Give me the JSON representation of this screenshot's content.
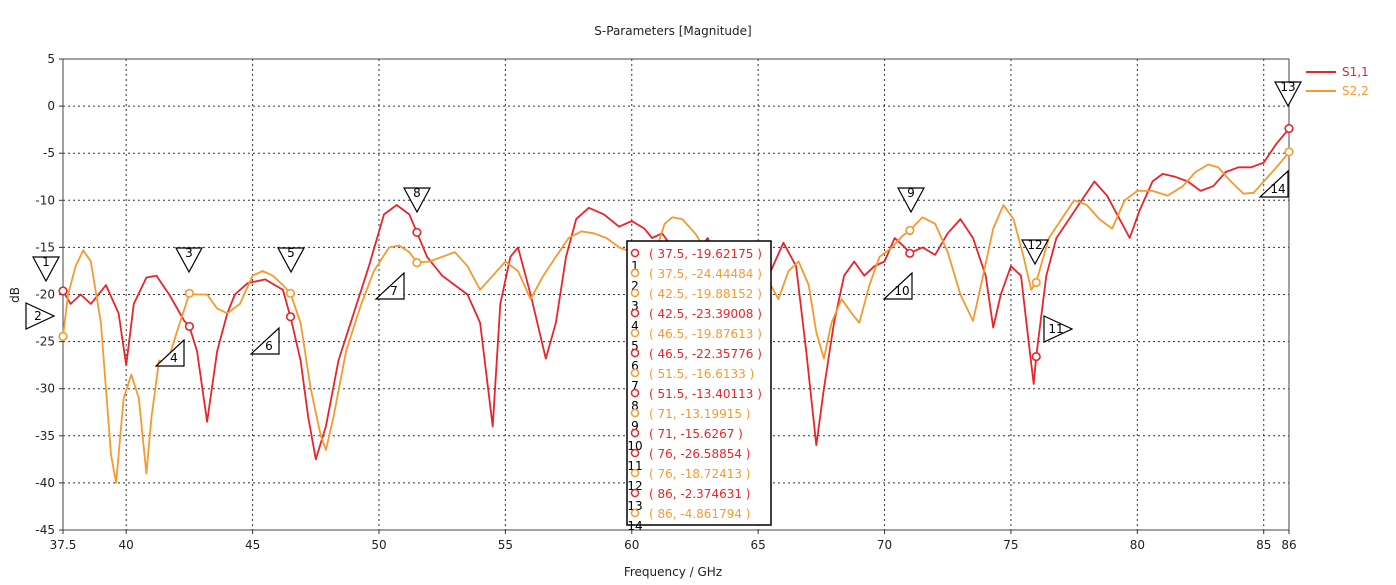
{
  "chart_data": {
    "type": "line",
    "title": "S-Parameters [Magnitude]",
    "xlabel": "Frequency / GHz",
    "ylabel": "dB",
    "xlim": [
      37.5,
      86
    ],
    "ylim": [
      -45,
      5
    ],
    "x_ticks": [
      37.5,
      40,
      45,
      50,
      55,
      60,
      65,
      70,
      75,
      80,
      85,
      86
    ],
    "x_tick_labels": [
      "37.5",
      "40",
      "45",
      "50",
      "55",
      "60",
      "65",
      "70",
      "75",
      "80",
      "85",
      "86"
    ],
    "y_ticks": [
      5,
      0,
      -5,
      -10,
      -15,
      -20,
      -25,
      -30,
      -35,
      -40,
      -45
    ],
    "y_tick_labels": [
      "5",
      "0",
      "-5",
      "-10",
      "-15",
      "-20",
      "-25",
      "-30",
      "-35",
      "-40",
      "-45"
    ],
    "grid": true,
    "legend_position": "top-right",
    "series": [
      {
        "name": "S1,1",
        "color": "#e8252b",
        "points": [
          [
            37.5,
            -19.6
          ],
          [
            37.8,
            -21
          ],
          [
            38.2,
            -20
          ],
          [
            38.6,
            -21
          ],
          [
            39.2,
            -19
          ],
          [
            39.7,
            -22
          ],
          [
            40,
            -27.5
          ],
          [
            40.3,
            -21
          ],
          [
            40.8,
            -18.2
          ],
          [
            41.2,
            -18
          ],
          [
            41.7,
            -20
          ],
          [
            42.3,
            -22.8
          ],
          [
            42.5,
            -23.4
          ],
          [
            42.8,
            -26
          ],
          [
            43.2,
            -33.5
          ],
          [
            43.6,
            -26
          ],
          [
            44,
            -22
          ],
          [
            44.3,
            -20
          ],
          [
            44.8,
            -18.8
          ],
          [
            45.5,
            -18.4
          ],
          [
            46.2,
            -19.5
          ],
          [
            46.5,
            -22.4
          ],
          [
            46.9,
            -27
          ],
          [
            47.2,
            -33
          ],
          [
            47.5,
            -37.5
          ],
          [
            47.9,
            -34
          ],
          [
            48.4,
            -27
          ],
          [
            49,
            -22
          ],
          [
            49.6,
            -17
          ],
          [
            50.2,
            -11.5
          ],
          [
            50.7,
            -10.5
          ],
          [
            51.2,
            -11.5
          ],
          [
            51.5,
            -13.4
          ],
          [
            51.9,
            -16
          ],
          [
            52.5,
            -18
          ],
          [
            53,
            -19
          ],
          [
            53.5,
            -20
          ],
          [
            54,
            -23
          ],
          [
            54.5,
            -34
          ],
          [
            54.8,
            -21
          ],
          [
            55.2,
            -16
          ],
          [
            55.5,
            -15
          ],
          [
            56,
            -20
          ],
          [
            56.6,
            -26.8
          ],
          [
            57,
            -23
          ],
          [
            57.4,
            -16
          ],
          [
            57.8,
            -12
          ],
          [
            58.3,
            -10.8
          ],
          [
            58.9,
            -11.5
          ],
          [
            59.5,
            -12.8
          ],
          [
            60,
            -12.2
          ],
          [
            60.5,
            -13
          ],
          [
            60.8,
            -14
          ],
          [
            61.2,
            -13.5
          ],
          [
            61.6,
            -15
          ],
          [
            62,
            -17.5
          ],
          [
            62.6,
            -15.5
          ],
          [
            63,
            -14
          ],
          [
            63.5,
            -17
          ],
          [
            64,
            -18.2
          ],
          [
            64.5,
            -16.5
          ],
          [
            65,
            -15.5
          ],
          [
            65.5,
            -17.5
          ],
          [
            66,
            -14.5
          ],
          [
            66.5,
            -17
          ],
          [
            66.9,
            -26
          ],
          [
            67.3,
            -36
          ],
          [
            67.6,
            -30
          ],
          [
            68,
            -23
          ],
          [
            68.4,
            -18
          ],
          [
            68.8,
            -16.5
          ],
          [
            69.2,
            -18
          ],
          [
            69.6,
            -17
          ],
          [
            70,
            -16.5
          ],
          [
            70.4,
            -14
          ],
          [
            70.8,
            -15
          ],
          [
            71,
            -15.6
          ],
          [
            71.5,
            -15
          ],
          [
            72,
            -15.8
          ],
          [
            72.5,
            -13.5
          ],
          [
            73,
            -12
          ],
          [
            73.5,
            -14
          ],
          [
            74,
            -18
          ],
          [
            74.3,
            -23.5
          ],
          [
            74.6,
            -20
          ],
          [
            75,
            -17
          ],
          [
            75.4,
            -18
          ],
          [
            75.7,
            -25
          ],
          [
            75.9,
            -29.5
          ],
          [
            76,
            -26.6
          ],
          [
            76.4,
            -18
          ],
          [
            76.8,
            -14
          ],
          [
            77.3,
            -12
          ],
          [
            77.8,
            -10
          ],
          [
            78.3,
            -8
          ],
          [
            78.8,
            -9.5
          ],
          [
            79.3,
            -12
          ],
          [
            79.7,
            -14
          ],
          [
            80.1,
            -11
          ],
          [
            80.6,
            -8
          ],
          [
            81,
            -7.2
          ],
          [
            81.5,
            -7.5
          ],
          [
            82,
            -8
          ],
          [
            82.5,
            -9
          ],
          [
            83,
            -8.5
          ],
          [
            83.5,
            -7
          ],
          [
            84,
            -6.5
          ],
          [
            84.5,
            -6.5
          ],
          [
            85,
            -6
          ],
          [
            85.5,
            -4
          ],
          [
            86,
            -2.4
          ]
        ]
      },
      {
        "name": "S2,2",
        "color": "#f59a2e",
        "points": [
          [
            37.5,
            -24.4
          ],
          [
            37.7,
            -20
          ],
          [
            38,
            -17
          ],
          [
            38.3,
            -15.3
          ],
          [
            38.6,
            -16.5
          ],
          [
            39,
            -23
          ],
          [
            39.4,
            -37
          ],
          [
            39.6,
            -40
          ],
          [
            39.9,
            -31
          ],
          [
            40.2,
            -28.5
          ],
          [
            40.5,
            -31
          ],
          [
            40.8,
            -39
          ],
          [
            41,
            -33
          ],
          [
            41.3,
            -27
          ],
          [
            41.6,
            -27.5
          ],
          [
            42,
            -24
          ],
          [
            42.5,
            -19.9
          ],
          [
            42.8,
            -20
          ],
          [
            43.2,
            -20
          ],
          [
            43.6,
            -21.5
          ],
          [
            44,
            -22
          ],
          [
            44.5,
            -21
          ],
          [
            45,
            -18
          ],
          [
            45.4,
            -17.5
          ],
          [
            45.8,
            -18
          ],
          [
            46.2,
            -19
          ],
          [
            46.5,
            -19.9
          ],
          [
            46.9,
            -23
          ],
          [
            47.3,
            -30
          ],
          [
            47.7,
            -35
          ],
          [
            47.9,
            -36.5
          ],
          [
            48.2,
            -33
          ],
          [
            48.7,
            -26
          ],
          [
            49.3,
            -21
          ],
          [
            49.8,
            -17.5
          ],
          [
            50.4,
            -15
          ],
          [
            50.8,
            -14.8
          ],
          [
            51.2,
            -15.5
          ],
          [
            51.5,
            -16.6
          ],
          [
            52,
            -16.5
          ],
          [
            52.5,
            -16
          ],
          [
            53,
            -15.5
          ],
          [
            53.5,
            -17
          ],
          [
            54,
            -19.5
          ],
          [
            54.5,
            -18
          ],
          [
            55,
            -16.5
          ],
          [
            55.5,
            -17.5
          ],
          [
            56,
            -20.5
          ],
          [
            56.5,
            -18
          ],
          [
            57,
            -16
          ],
          [
            57.5,
            -14
          ],
          [
            58,
            -13.3
          ],
          [
            58.5,
            -13.5
          ],
          [
            59,
            -14
          ],
          [
            59.5,
            -15
          ],
          [
            60,
            -15.5
          ],
          [
            60.6,
            -16
          ],
          [
            61,
            -15
          ],
          [
            61.3,
            -12.5
          ],
          [
            61.6,
            -11.8
          ],
          [
            62,
            -12
          ],
          [
            62.5,
            -13.5
          ],
          [
            63,
            -15.5
          ],
          [
            63.5,
            -16.5
          ],
          [
            64,
            -17
          ],
          [
            64.5,
            -15.5
          ],
          [
            65,
            -16
          ],
          [
            65.5,
            -19
          ],
          [
            65.8,
            -20.5
          ],
          [
            66.2,
            -17.5
          ],
          [
            66.6,
            -16.5
          ],
          [
            67,
            -19
          ],
          [
            67.3,
            -24
          ],
          [
            67.6,
            -26.8
          ],
          [
            67.9,
            -23
          ],
          [
            68.3,
            -20.5
          ],
          [
            68.7,
            -22
          ],
          [
            69,
            -23
          ],
          [
            69.4,
            -19
          ],
          [
            69.8,
            -16
          ],
          [
            70.3,
            -15
          ],
          [
            70.7,
            -13.8
          ],
          [
            71,
            -13.2
          ],
          [
            71.5,
            -11.8
          ],
          [
            72,
            -12.5
          ],
          [
            72.5,
            -15.5
          ],
          [
            73,
            -20
          ],
          [
            73.5,
            -22.8
          ],
          [
            73.9,
            -18
          ],
          [
            74.3,
            -13
          ],
          [
            74.7,
            -10.5
          ],
          [
            75.1,
            -12
          ],
          [
            75.5,
            -16
          ],
          [
            75.8,
            -19.5
          ],
          [
            76,
            -18.7
          ],
          [
            76.5,
            -14
          ],
          [
            77,
            -12
          ],
          [
            77.5,
            -10
          ],
          [
            78,
            -10.5
          ],
          [
            78.5,
            -12
          ],
          [
            79,
            -13
          ],
          [
            79.5,
            -10
          ],
          [
            80,
            -9
          ],
          [
            80.6,
            -9
          ],
          [
            81.2,
            -9.5
          ],
          [
            81.8,
            -8.5
          ],
          [
            82.3,
            -7
          ],
          [
            82.8,
            -6.2
          ],
          [
            83.2,
            -6.5
          ],
          [
            83.7,
            -8
          ],
          [
            84.2,
            -9.3
          ],
          [
            84.6,
            -9.2
          ],
          [
            85,
            -8
          ],
          [
            85.5,
            -6.5
          ],
          [
            86,
            -4.9
          ]
        ]
      }
    ],
    "markers": [
      {
        "id": "1",
        "x": 37.5,
        "y": -19.62175,
        "series": "S1,1",
        "label": "( 37.5, -19.62175 )"
      },
      {
        "id": "2",
        "x": 37.5,
        "y": -24.44484,
        "series": "S2,2",
        "label": "( 37.5, -24.44484 )"
      },
      {
        "id": "3",
        "x": 42.5,
        "y": -19.88152,
        "series": "S2,2",
        "label": "( 42.5, -19.88152 )"
      },
      {
        "id": "4",
        "x": 42.5,
        "y": -23.39008,
        "series": "S1,1",
        "label": "( 42.5, -23.39008 )"
      },
      {
        "id": "5",
        "x": 46.5,
        "y": -19.87613,
        "series": "S2,2",
        "label": "( 46.5, -19.87613 )"
      },
      {
        "id": "6",
        "x": 46.5,
        "y": -22.35776,
        "series": "S1,1",
        "label": "( 46.5, -22.35776 )"
      },
      {
        "id": "7",
        "x": 51.5,
        "y": -16.6133,
        "series": "S2,2",
        "label": "( 51.5, -16.6133 )"
      },
      {
        "id": "8",
        "x": 51.5,
        "y": -13.40113,
        "series": "S1,1",
        "label": "( 51.5, -13.40113 )"
      },
      {
        "id": "9",
        "x": 71,
        "y": -13.19915,
        "series": "S2,2",
        "label": "( 71, -13.19915 )"
      },
      {
        "id": "10",
        "x": 71,
        "y": -15.6267,
        "series": "S1,1",
        "label": "( 71, -15.6267 )"
      },
      {
        "id": "11",
        "x": 76,
        "y": -26.58854,
        "series": "S1,1",
        "label": "( 76, -26.58854 )"
      },
      {
        "id": "12",
        "x": 76,
        "y": -18.72413,
        "series": "S2,2",
        "label": "( 76, -18.72413 )"
      },
      {
        "id": "13",
        "x": 86,
        "y": -2.374631,
        "series": "S1,1",
        "label": "( 86, -2.374631 )"
      },
      {
        "id": "14",
        "x": 86,
        "y": -4.861794,
        "series": "S2,2",
        "label": "( 86, -4.861794 )"
      }
    ]
  }
}
